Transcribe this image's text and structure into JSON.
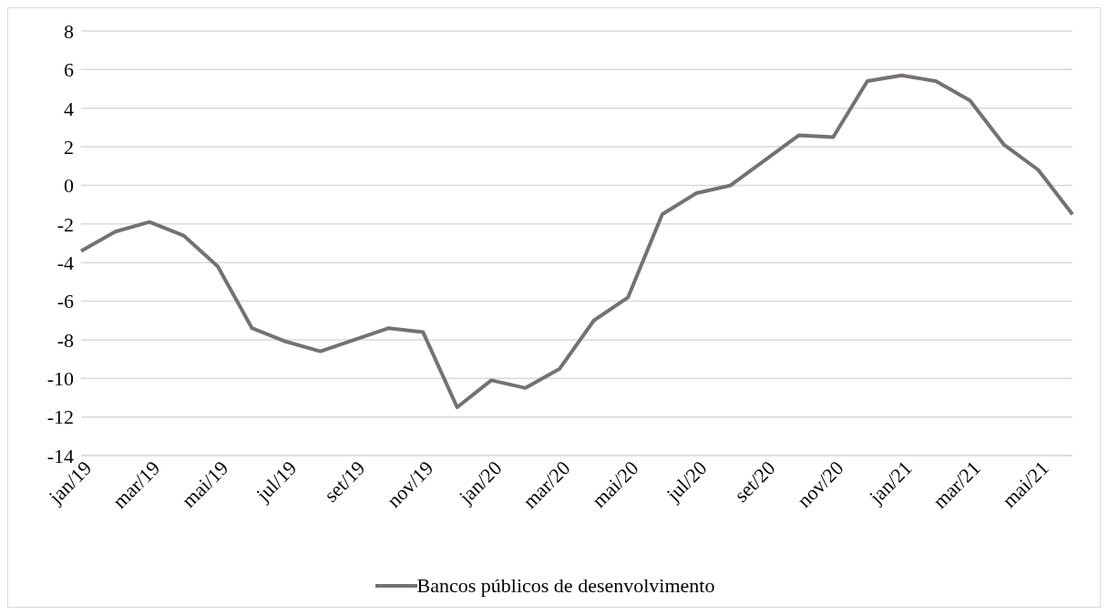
{
  "chart_data": {
    "type": "line",
    "categories": [
      "jan/19",
      null,
      "mar/19",
      null,
      "mai/19",
      null,
      "jul/19",
      null,
      "set/19",
      null,
      "nov/19",
      null,
      "jan/20",
      null,
      "mar/20",
      null,
      "mai/20",
      null,
      "jul/20",
      null,
      "set/20",
      null,
      "nov/20",
      null,
      "jan/21",
      null,
      "mar/21",
      null,
      "mai/21",
      null
    ],
    "series": [
      {
        "name": "Bancos públicos de desenvolvimento",
        "color": "#767171",
        "values": [
          -3.4,
          -2.4,
          -1.9,
          -2.6,
          -4.2,
          -7.4,
          -8.1,
          -8.6,
          -8.0,
          -7.4,
          -7.6,
          -11.5,
          -10.1,
          -10.5,
          -9.5,
          -7.0,
          -5.8,
          -1.5,
          -0.4,
          0.0,
          1.3,
          2.6,
          2.5,
          5.4,
          5.7,
          5.4,
          4.4,
          2.1,
          0.8,
          -1.5
        ]
      }
    ],
    "ylim": [
      -14,
      8
    ],
    "yticks": [
      -14,
      -12,
      -10,
      -8,
      -6,
      -4,
      -2,
      0,
      2,
      4,
      6,
      8
    ],
    "grid": "y",
    "legend": "bottom",
    "marker": "none",
    "line_style": "solid"
  }
}
